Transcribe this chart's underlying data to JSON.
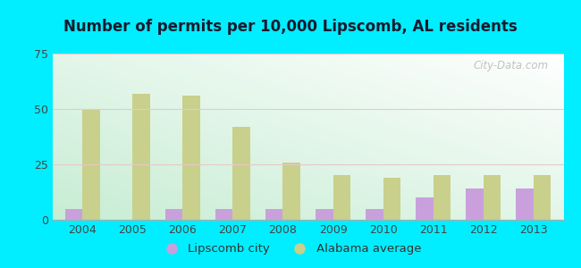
{
  "title": "Number of permits per 10,000 Lipscomb, AL residents",
  "years": [
    2004,
    2005,
    2006,
    2007,
    2008,
    2009,
    2010,
    2011,
    2012,
    2013
  ],
  "lipscomb": [
    5,
    0,
    5,
    5,
    5,
    5,
    5,
    10,
    14,
    14
  ],
  "alabama": [
    50,
    57,
    56,
    42,
    26,
    20,
    19,
    20,
    20,
    20
  ],
  "lipscomb_color": "#c9a0dc",
  "alabama_color": "#c8d08c",
  "outer_bg": "#00eeff",
  "ylim": [
    0,
    75
  ],
  "yticks": [
    0,
    25,
    50,
    75
  ],
  "legend_lipscomb": "Lipscomb city",
  "legend_alabama": "Alabama average",
  "watermark": "City-Data.com",
  "bar_width": 0.35,
  "title_color": "#1a1a2e",
  "tick_color": "#444444"
}
